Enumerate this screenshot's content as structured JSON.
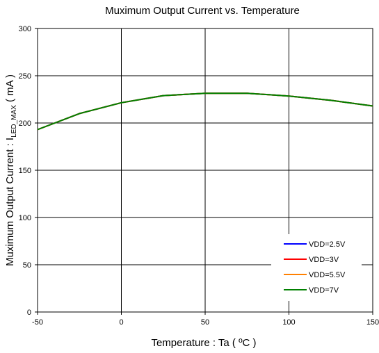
{
  "chart_data": {
    "type": "line",
    "title": "Muximum Output Current vs. Temperature",
    "xlabel": "Temperature : Ta ( ºC )",
    "ylabel_prefix": "Muximum Output Current : I",
    "ylabel_subscript": "LED_MAX",
    "ylabel_suffix": " ( mA )",
    "xlim": [
      -50,
      150
    ],
    "ylim": [
      0,
      300
    ],
    "xticks": [
      -50,
      0,
      50,
      100,
      150
    ],
    "yticks": [
      0,
      50,
      100,
      150,
      200,
      250,
      300
    ],
    "grid": "major-only",
    "legend_position": "bottom-right",
    "x": [
      -50,
      -25,
      0,
      25,
      50,
      75,
      100,
      125,
      150
    ],
    "series": [
      {
        "name": "VDD=2.5V",
        "color": "#0000ff",
        "values": [
          193,
          210,
          221.5,
          229,
          231.5,
          231.5,
          228.5,
          224,
          218
        ]
      },
      {
        "name": "VDD=3V",
        "color": "#ff0000",
        "values": [
          193,
          210,
          221.5,
          229,
          231.5,
          231.5,
          228.5,
          224,
          218
        ]
      },
      {
        "name": "VDD=5.5V",
        "color": "#ff8000",
        "values": [
          193,
          210,
          221.5,
          229,
          231.5,
          231.5,
          228.5,
          224,
          218
        ]
      },
      {
        "name": "VDD=7V",
        "color": "#008000",
        "values": [
          193,
          210,
          221.5,
          229,
          231.5,
          231.5,
          228.5,
          224,
          218
        ]
      }
    ]
  }
}
